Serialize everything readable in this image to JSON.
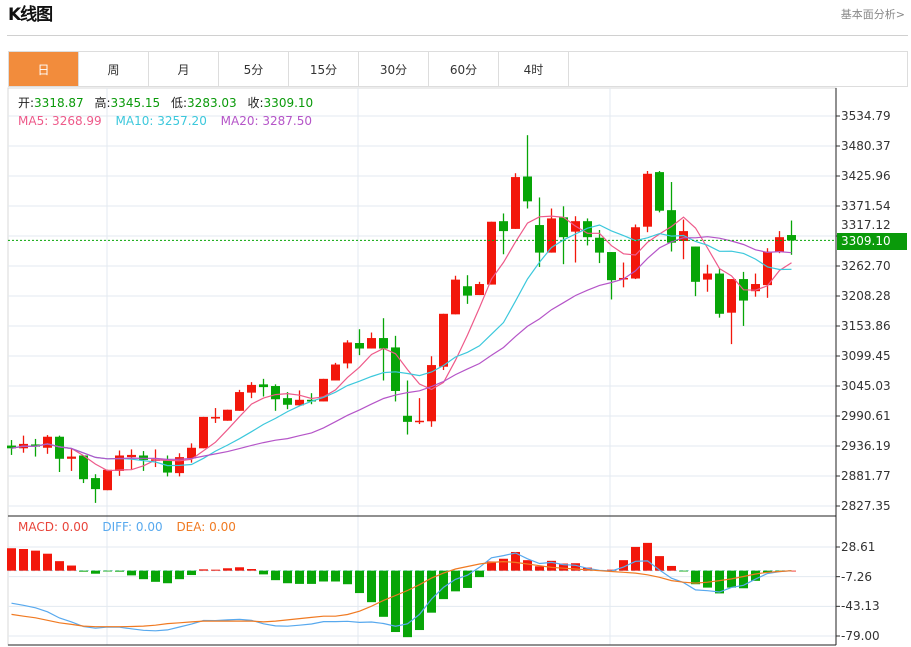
{
  "header": {
    "title": "K线图",
    "fundamental_link": "基本面分析>"
  },
  "tabs": [
    {
      "label": "日",
      "active": true
    },
    {
      "label": "周"
    },
    {
      "label": "月"
    },
    {
      "label": "5分"
    },
    {
      "label": "15分"
    },
    {
      "label": "30分"
    },
    {
      "label": "60分"
    },
    {
      "label": "4时"
    }
  ],
  "ohlc_info": {
    "open_label": "开:",
    "open": "3318.87",
    "high_label": "高:",
    "high": "3345.15",
    "low_label": "低:",
    "low": "3283.03",
    "close_label": "收:",
    "close": "3309.10"
  },
  "ma_info": {
    "ma5": "MA5: 3268.99",
    "ma10": "MA10: 3257.20",
    "ma20": "MA20: 3287.50"
  },
  "macd_info": {
    "macd": "MACD: 0.00",
    "diff": "DIFF: 0.00",
    "dea": "DEA: 0.00"
  },
  "current_price_tag": "3309.10",
  "colors": {
    "up": "#f2170b",
    "down": "#07a507",
    "ma5": "#ee5a8a",
    "ma10": "#3cc8dc",
    "ma20": "#b555c8",
    "diff": "#58a9ee",
    "dea": "#f07a22",
    "accent": "#f28c3c"
  },
  "chart_data": [
    {
      "type": "candlestick",
      "title": "K线图 日",
      "y_axis_ticks": [
        "3534.79",
        "3480.37",
        "3425.96",
        "3371.54",
        "3317.12",
        "3262.70",
        "3208.28",
        "3153.86",
        "3099.45",
        "3045.03",
        "2990.61",
        "2936.19",
        "2881.77",
        "2827.35"
      ],
      "ylim": [
        2827.35,
        3534.79
      ],
      "grid": true,
      "ohlc": [
        [
          2937,
          2947,
          2920,
          2932
        ],
        [
          2932,
          2955,
          2924,
          2940
        ],
        [
          2939,
          2949,
          2917,
          2935
        ],
        [
          2933,
          2956,
          2922,
          2953
        ],
        [
          2953,
          2955,
          2889,
          2913
        ],
        [
          2913,
          2931,
          2891,
          2917
        ],
        [
          2919,
          2919,
          2869,
          2876
        ],
        [
          2878,
          2885,
          2833,
          2858
        ],
        [
          2856,
          2893,
          2856,
          2893
        ],
        [
          2891,
          2928,
          2882,
          2919
        ],
        [
          2916,
          2930,
          2894,
          2920
        ],
        [
          2919,
          2927,
          2891,
          2911
        ],
        [
          2910,
          2930,
          2898,
          2912
        ],
        [
          2910,
          2919,
          2881,
          2888
        ],
        [
          2887,
          2923,
          2881,
          2916
        ],
        [
          2914,
          2941,
          2906,
          2933
        ],
        [
          2932,
          2989,
          2932,
          2989
        ],
        [
          2986,
          3005,
          2978,
          2989
        ],
        [
          2982,
          3002,
          2982,
          3002
        ],
        [
          3000,
          3038,
          3000,
          3034
        ],
        [
          3033,
          3052,
          3023,
          3047
        ],
        [
          3048,
          3058,
          3026,
          3043
        ],
        [
          3045,
          3048,
          3000,
          3021
        ],
        [
          3023,
          3034,
          3003,
          3011
        ],
        [
          3010,
          3037,
          3009,
          3020
        ],
        [
          3020,
          3032,
          3012,
          3017
        ],
        [
          3017,
          3058,
          3017,
          3058
        ],
        [
          3055,
          3087,
          3055,
          3084
        ],
        [
          3086,
          3128,
          3077,
          3124
        ],
        [
          3123,
          3148,
          3101,
          3113
        ],
        [
          3113,
          3142,
          3113,
          3132
        ],
        [
          3132,
          3168,
          3055,
          3113
        ],
        [
          3115,
          3136,
          3017,
          3036
        ],
        [
          2991,
          3055,
          2957,
          2980
        ],
        [
          2980,
          3023,
          2976,
          2982
        ],
        [
          2981,
          3099,
          2971,
          3083
        ],
        [
          3080,
          3176,
          3074,
          3176
        ],
        [
          3175,
          3245,
          3175,
          3238
        ],
        [
          3226,
          3246,
          3194,
          3209
        ],
        [
          3210,
          3234,
          3210,
          3230
        ],
        [
          3229,
          3343,
          3229,
          3343
        ],
        [
          3344,
          3358,
          3284,
          3326
        ],
        [
          3330,
          3431,
          3330,
          3424
        ],
        [
          3425,
          3500,
          3367,
          3380
        ],
        [
          3337,
          3387,
          3261,
          3287
        ],
        [
          3287,
          3367,
          3287,
          3349
        ],
        [
          3351,
          3371,
          3266,
          3315
        ],
        [
          3325,
          3353,
          3269,
          3344
        ],
        [
          3344,
          3349,
          3300,
          3315
        ],
        [
          3314,
          3328,
          3268,
          3287
        ],
        [
          3288,
          3288,
          3202,
          3237
        ],
        [
          3239,
          3269,
          3224,
          3241
        ],
        [
          3240,
          3338,
          3239,
          3333
        ],
        [
          3334,
          3435,
          3324,
          3430
        ],
        [
          3433,
          3435,
          3360,
          3363
        ],
        [
          3364,
          3415,
          3289,
          3305
        ],
        [
          3308,
          3347,
          3275,
          3326
        ],
        [
          3298,
          3298,
          3208,
          3234
        ],
        [
          3238,
          3265,
          3216,
          3249
        ],
        [
          3249,
          3257,
          3169,
          3176
        ],
        [
          3178,
          3239,
          3121,
          3239
        ],
        [
          3239,
          3252,
          3154,
          3200
        ],
        [
          3217,
          3249,
          3207,
          3230
        ],
        [
          3228,
          3295,
          3205,
          3289
        ],
        [
          3289,
          3326,
          3286,
          3315
        ],
        [
          3318.87,
          3345.15,
          3283.03,
          3309.1
        ]
      ],
      "last_price": 3309.1
    },
    {
      "type": "bar",
      "title": "MACD",
      "y_axis_ticks": [
        "28.61",
        "-7.26",
        "-43.13",
        "-79.00"
      ],
      "ylim": [
        -79.0,
        28.61
      ],
      "macd": [
        27.1,
        26.2,
        24.2,
        20.5,
        11.5,
        6.2,
        -1.2,
        -3.7,
        -0.8,
        -1.2,
        -5.7,
        -10.3,
        -13.5,
        -15.2,
        -10.3,
        -5.3,
        1.6,
        1.2,
        2.9,
        4.1,
        2.0,
        -4.5,
        -11.5,
        -15.2,
        -16.0,
        -16.0,
        -13.1,
        -13.1,
        -16.4,
        -27.1,
        -38.1,
        -55.8,
        -74.2,
        -80.4,
        -71.8,
        -50.8,
        -34.4,
        -25.0,
        -20.9,
        -7.8,
        11.1,
        14.4,
        22.6,
        12.7,
        5.3,
        11.9,
        8.6,
        9.0,
        3.7,
        0.8,
        1.2,
        12.7,
        28.7,
        33.6,
        17.6,
        5.7,
        -0.8,
        -16.4,
        -20.5,
        -27.5,
        -20.5,
        -21.3,
        -12.3,
        -2.9,
        -0.4,
        0.0
      ],
      "dea": [
        -52.9,
        -55,
        -57,
        -60,
        -63,
        -65,
        -67,
        -67.7,
        -67.7,
        -67.7,
        -67.5,
        -67,
        -66,
        -64,
        -63,
        -62,
        -61,
        -61,
        -61,
        -61,
        -61,
        -62,
        -61,
        -59.5,
        -58,
        -56.5,
        -55,
        -55,
        -53,
        -49,
        -43,
        -36,
        -30,
        -24,
        -17,
        -9,
        -3,
        2,
        5,
        8,
        10,
        11,
        10,
        8,
        6,
        4,
        3,
        2,
        1,
        0,
        -1,
        -2,
        -3,
        -5,
        -8,
        -12,
        -14,
        -15,
        -14,
        -12,
        -10,
        -7,
        -4,
        -2,
        -1,
        0
      ]
    }
  ]
}
